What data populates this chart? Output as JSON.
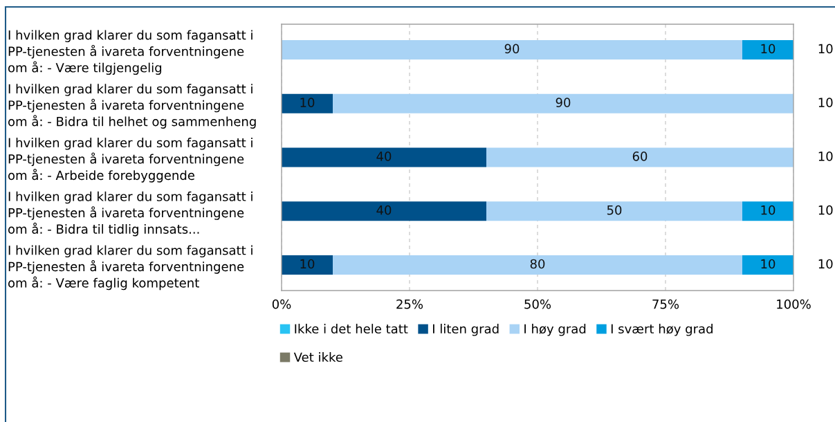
{
  "chart_data": {
    "type": "bar",
    "orientation": "horizontal",
    "stacked": true,
    "categories": [
      "I hvilken grad klarer du som fagansatt i\nPP-tjenesten å ivareta forventningene\nom å: - Være tilgjengelig",
      "I hvilken grad klarer du som fagansatt i\nPP-tjenesten å ivareta forventningene\nom å: - Bidra til helhet og sammenheng",
      "I hvilken grad klarer du som fagansatt i\nPP-tjenesten å ivareta forventningene\nom å: - Arbeide forebyggende",
      "I hvilken grad klarer du som fagansatt i\nPP-tjenesten å ivareta forventningene\nom å: - Bidra til tidlig innsats...",
      "I hvilken grad klarer du som fagansatt i\nPP-tjenesten å ivareta forventningene\nom å: - Være faglig kompetent"
    ],
    "series": [
      {
        "name": "Ikke i det hele tatt",
        "color": "#29c3f3",
        "values": [
          null,
          null,
          null,
          null,
          null
        ]
      },
      {
        "name": "I liten grad",
        "color": "#00518a",
        "values": [
          null,
          10,
          40,
          40,
          10
        ]
      },
      {
        "name": "I høy grad",
        "color": "#a9d3f5",
        "values": [
          90,
          90,
          60,
          50,
          80
        ]
      },
      {
        "name": "I svært høy grad",
        "color": "#009fe0",
        "values": [
          10,
          null,
          null,
          10,
          10
        ]
      },
      {
        "name": "Vet ikke",
        "color": "#7b7a66",
        "values": [
          null,
          null,
          null,
          null,
          null
        ]
      }
    ],
    "xlim": [
      0,
      100
    ],
    "xticks": [
      {
        "value": 0,
        "label": "0%"
      },
      {
        "value": 25,
        "label": "25%"
      },
      {
        "value": 50,
        "label": "50%"
      },
      {
        "value": 75,
        "label": "75%"
      },
      {
        "value": 100,
        "label": "100%"
      }
    ],
    "grid": "x",
    "legend": "bottom",
    "data_labels": true,
    "annotations": [
      "10",
      "10",
      "10",
      "10",
      "10"
    ]
  }
}
